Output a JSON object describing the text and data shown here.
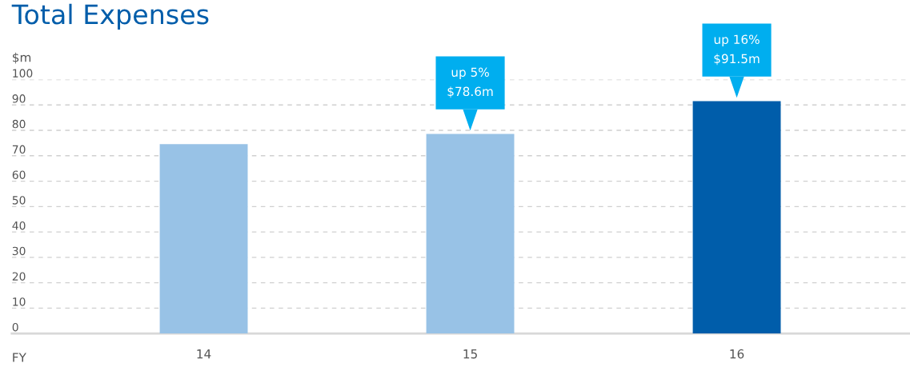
{
  "chart_data": {
    "type": "bar",
    "title": "Total Expenses",
    "xlabel": "FY",
    "ylabel": "$m",
    "categories": [
      "14",
      "15",
      "16"
    ],
    "values": [
      74.6,
      78.6,
      91.5
    ],
    "colors": [
      "#98c2e6",
      "#98c2e6",
      "#005daa"
    ],
    "ylim": [
      0,
      100
    ],
    "yticks": [
      0,
      10,
      20,
      30,
      40,
      50,
      60,
      70,
      80,
      90,
      100
    ],
    "grid": "y",
    "annotations": [
      {
        "text": "up 5%\n$78.6m",
        "x": "15",
        "y": 78.6
      },
      {
        "text": "up 16%\n$91.5m",
        "x": "16",
        "y": 91.5
      }
    ]
  }
}
